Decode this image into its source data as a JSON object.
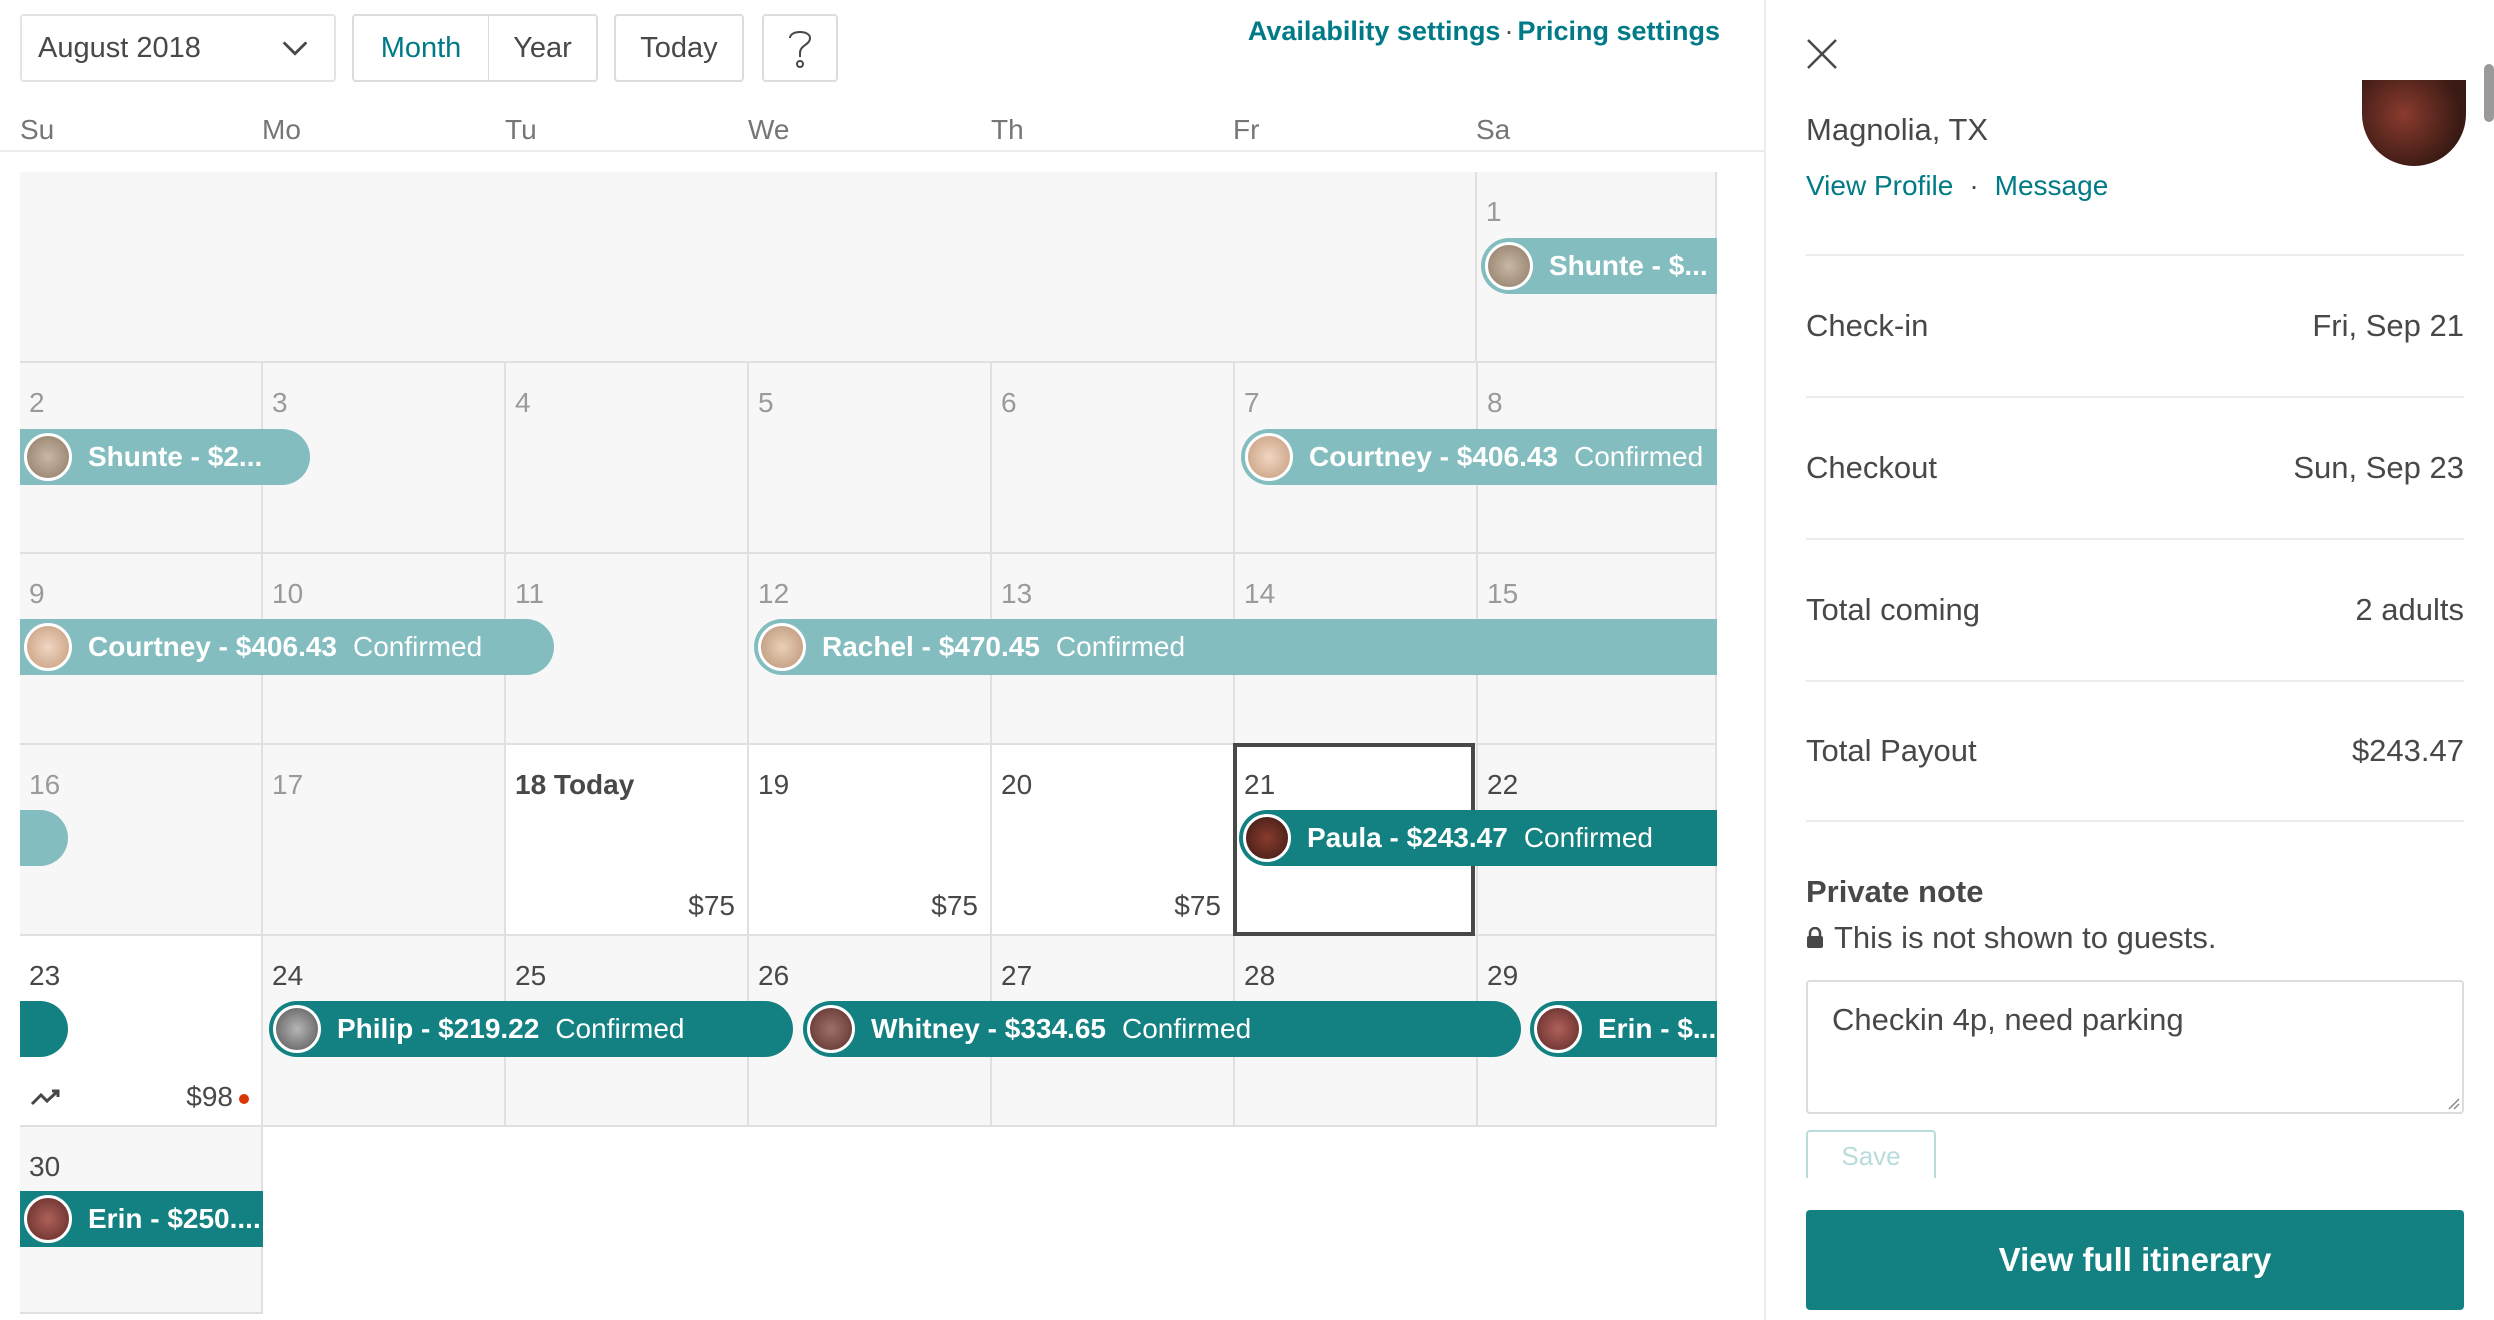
{
  "toolbar": {
    "month_value": "August 2018",
    "view_month": "Month",
    "view_year": "Year",
    "today": "Today",
    "help_icon": "?",
    "availability_link": "Availability settings",
    "link_separator": "·",
    "pricing_link": "Pricing settings"
  },
  "weekdays": [
    "Su",
    "Mo",
    "Tu",
    "We",
    "Th",
    "Fr",
    "Sa"
  ],
  "days": {
    "d1": "1",
    "d2": "2",
    "d3": "3",
    "d4": "4",
    "d5": "5",
    "d6": "6",
    "d7": "7",
    "d8": "8",
    "d9": "9",
    "d10": "10",
    "d11": "11",
    "d12": "12",
    "d13": "13",
    "d14": "14",
    "d15": "15",
    "d16": "16",
    "d17": "17",
    "d18": "18 Today",
    "d19": "19",
    "d20": "20",
    "d21": "21",
    "d22": "22",
    "d23": "23",
    "d24": "24",
    "d25": "25",
    "d26": "26",
    "d27": "27",
    "d28": "28",
    "d29": "29",
    "d30": "30"
  },
  "prices": {
    "d18": "$75",
    "d19": "$75",
    "d20": "$75",
    "d23": "$98"
  },
  "reservations": {
    "shunte1": {
      "name": "Shunte - $...",
      "status": ""
    },
    "shunte2": {
      "name": "Shunte - $2...",
      "status": ""
    },
    "courtney1": {
      "name": "Courtney - $406.43",
      "status": "Confirmed"
    },
    "courtney2": {
      "name": "Courtney - $406.43",
      "status": "Confirmed"
    },
    "rachel": {
      "name": "Rachel - $470.45",
      "status": "Confirmed"
    },
    "paula": {
      "name": "Paula - $243.47",
      "status": "Confirmed"
    },
    "philip": {
      "name": "Philip - $219.22",
      "status": "Confirmed"
    },
    "whitney": {
      "name": "Whitney - $334.65",
      "status": "Confirmed"
    },
    "erin1": {
      "name": "Erin - $...",
      "status": ""
    },
    "erin2": {
      "name": "Erin - $250....",
      "status": ""
    }
  },
  "panel": {
    "location": "Magnolia, TX",
    "view_profile": "View Profile",
    "link_dot": "·",
    "message": "Message",
    "rows": [
      {
        "label": "Check-in",
        "value": "Fri, Sep 21"
      },
      {
        "label": "Checkout",
        "value": "Sun, Sep 23"
      },
      {
        "label": "Total coming",
        "value": "2 adults"
      },
      {
        "label": "Total Payout",
        "value": "$243.47"
      }
    ],
    "note_title": "Private note",
    "note_subtitle": "This is not shown to guests.",
    "note_value": "Checkin 4p, need parking",
    "save": "Save",
    "itinerary_button": "View full itinerary"
  },
  "colors": {
    "accent": "#007a87",
    "confirmed_bar": "#138181",
    "past_bar": "#84bdbf"
  }
}
